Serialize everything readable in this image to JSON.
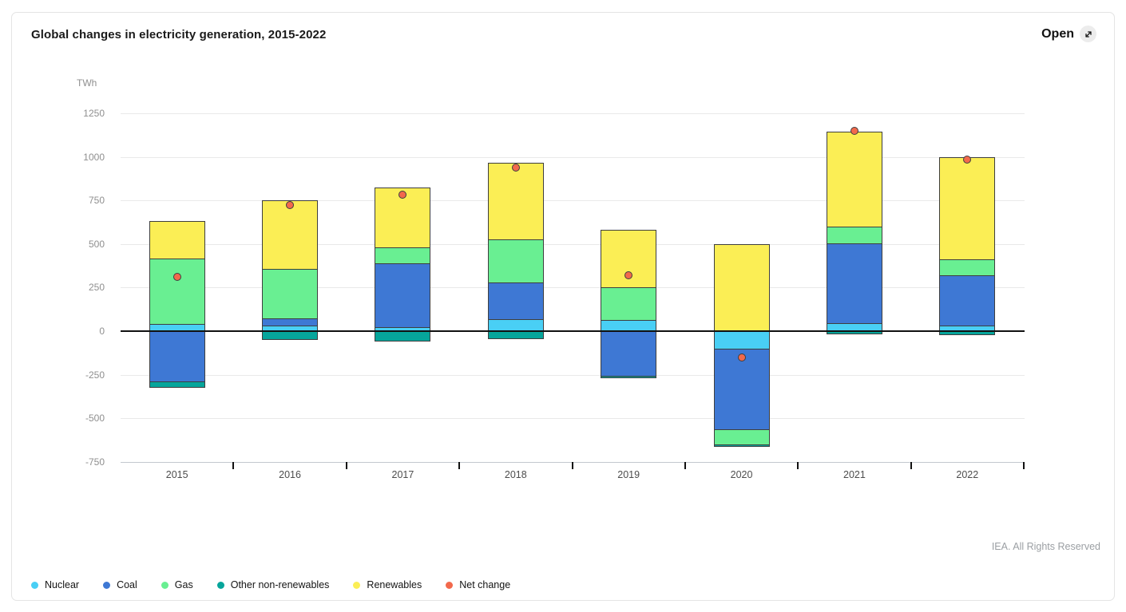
{
  "window": {
    "title": "Global changes in electricity generation, 2015-2022",
    "open_label": "Open",
    "open_icon": "expand-diagonal-arrow"
  },
  "footer": {
    "rights_text": "IEA. All Rights Reserved"
  },
  "chart_data": {
    "type": "bar",
    "stacked": true,
    "title": "Global changes in electricity generation, 2015-2022",
    "ylabel": "TWh",
    "xlabel": "",
    "ylim": [
      -750,
      1350
    ],
    "y_ticks": [
      1250,
      1000,
      750,
      500,
      250,
      0,
      -250,
      -500,
      -750
    ],
    "grid": true,
    "legend_position": "bottom",
    "categories": [
      "2015",
      "2016",
      "2017",
      "2018",
      "2019",
      "2020",
      "2021",
      "2022"
    ],
    "series": [
      {
        "name": "Nuclear",
        "color": "#49CFF5",
        "values": [
          40,
          30,
          25,
          70,
          65,
          -100,
          45,
          30
        ]
      },
      {
        "name": "Coal",
        "color": "#3E78D4",
        "values": [
          -290,
          45,
          365,
          210,
          -255,
          -465,
          460,
          290
        ]
      },
      {
        "name": "Gas",
        "color": "#69EF92",
        "values": [
          375,
          280,
          90,
          245,
          185,
          -85,
          95,
          90
        ]
      },
      {
        "name": "Other non-renewables",
        "color": "#06A59B",
        "values": [
          -30,
          -45,
          -55,
          -40,
          -10,
          -10,
          -15,
          -20
        ]
      },
      {
        "name": "Renewables",
        "color": "#FBEE55",
        "values": [
          215,
          395,
          345,
          440,
          330,
          500,
          545,
          590
        ]
      }
    ],
    "net_change_series": {
      "name": "Net change",
      "color": "#F2694C",
      "values": [
        310,
        725,
        785,
        940,
        320,
        -150,
        1150,
        985
      ]
    },
    "colors": {
      "grid": "#e9e9e9",
      "zero_line": "#111111",
      "axis_line": "#c3c8ce",
      "segment_outline": "#3e3e3e"
    }
  }
}
